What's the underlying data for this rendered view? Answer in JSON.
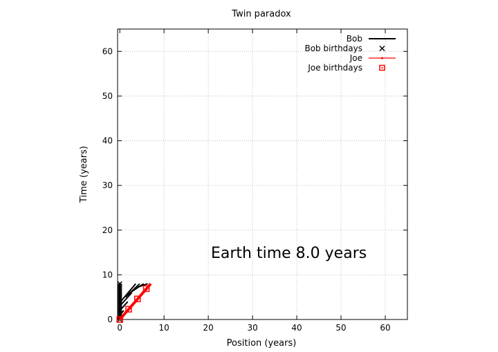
{
  "chart_data": {
    "type": "line",
    "title": "Twin paradox",
    "xlabel": "Position (years)",
    "ylabel": "Time (years)",
    "xlim": [
      -0.5,
      65
    ],
    "ylim": [
      0,
      65
    ],
    "xticks": [
      0,
      10,
      20,
      30,
      40,
      50,
      60
    ],
    "yticks": [
      0,
      10,
      20,
      30,
      40,
      50,
      60
    ],
    "grid": true,
    "legend_position": "top-right",
    "annotation": "Earth time  8.0 years",
    "series": [
      {
        "name": "Bob",
        "kind": "line",
        "color": "#000000",
        "points": [
          [
            0,
            0
          ],
          [
            0,
            8
          ]
        ]
      },
      {
        "name": "Bob birthdays",
        "kind": "marker-x",
        "color": "#000000",
        "points": [
          [
            0,
            0
          ],
          [
            0,
            0.5
          ],
          [
            0,
            1
          ],
          [
            0,
            1.5
          ],
          [
            0,
            2
          ],
          [
            0,
            2.5
          ],
          [
            0,
            3
          ],
          [
            0,
            3.5
          ],
          [
            0,
            4
          ],
          [
            0,
            4.5
          ],
          [
            0,
            5
          ],
          [
            0,
            5.5
          ],
          [
            0,
            6
          ],
          [
            0,
            6.5
          ],
          [
            0,
            7
          ],
          [
            0,
            7.5
          ],
          [
            0,
            8
          ]
        ]
      },
      {
        "name": "Joe",
        "kind": "line",
        "color": "#ff0000",
        "points": [
          [
            0,
            0
          ],
          [
            7,
            8
          ]
        ]
      },
      {
        "name": "Joe birthdays",
        "kind": "marker-square",
        "color": "#ff0000",
        "points": [
          [
            0,
            0
          ],
          [
            2,
            2.3
          ],
          [
            4,
            4.6
          ],
          [
            6,
            6.9
          ]
        ]
      }
    ],
    "simultaneity_lines": [
      [
        [
          0,
          0
        ],
        [
          0,
          0
        ]
      ],
      [
        [
          0,
          1
        ],
        [
          0.9,
          2.0
        ]
      ],
      [
        [
          0,
          2
        ],
        [
          1.8,
          4.0
        ]
      ],
      [
        [
          0,
          3
        ],
        [
          2.7,
          6.0
        ]
      ],
      [
        [
          0.2,
          4
        ],
        [
          3.6,
          8.0
        ]
      ],
      [
        [
          1.3,
          5
        ],
        [
          4.5,
          8.0
        ]
      ],
      [
        [
          2.3,
          6
        ],
        [
          5.4,
          8.0
        ]
      ],
      [
        [
          3.3,
          7
        ],
        [
          6.3,
          8.0
        ]
      ]
    ]
  }
}
